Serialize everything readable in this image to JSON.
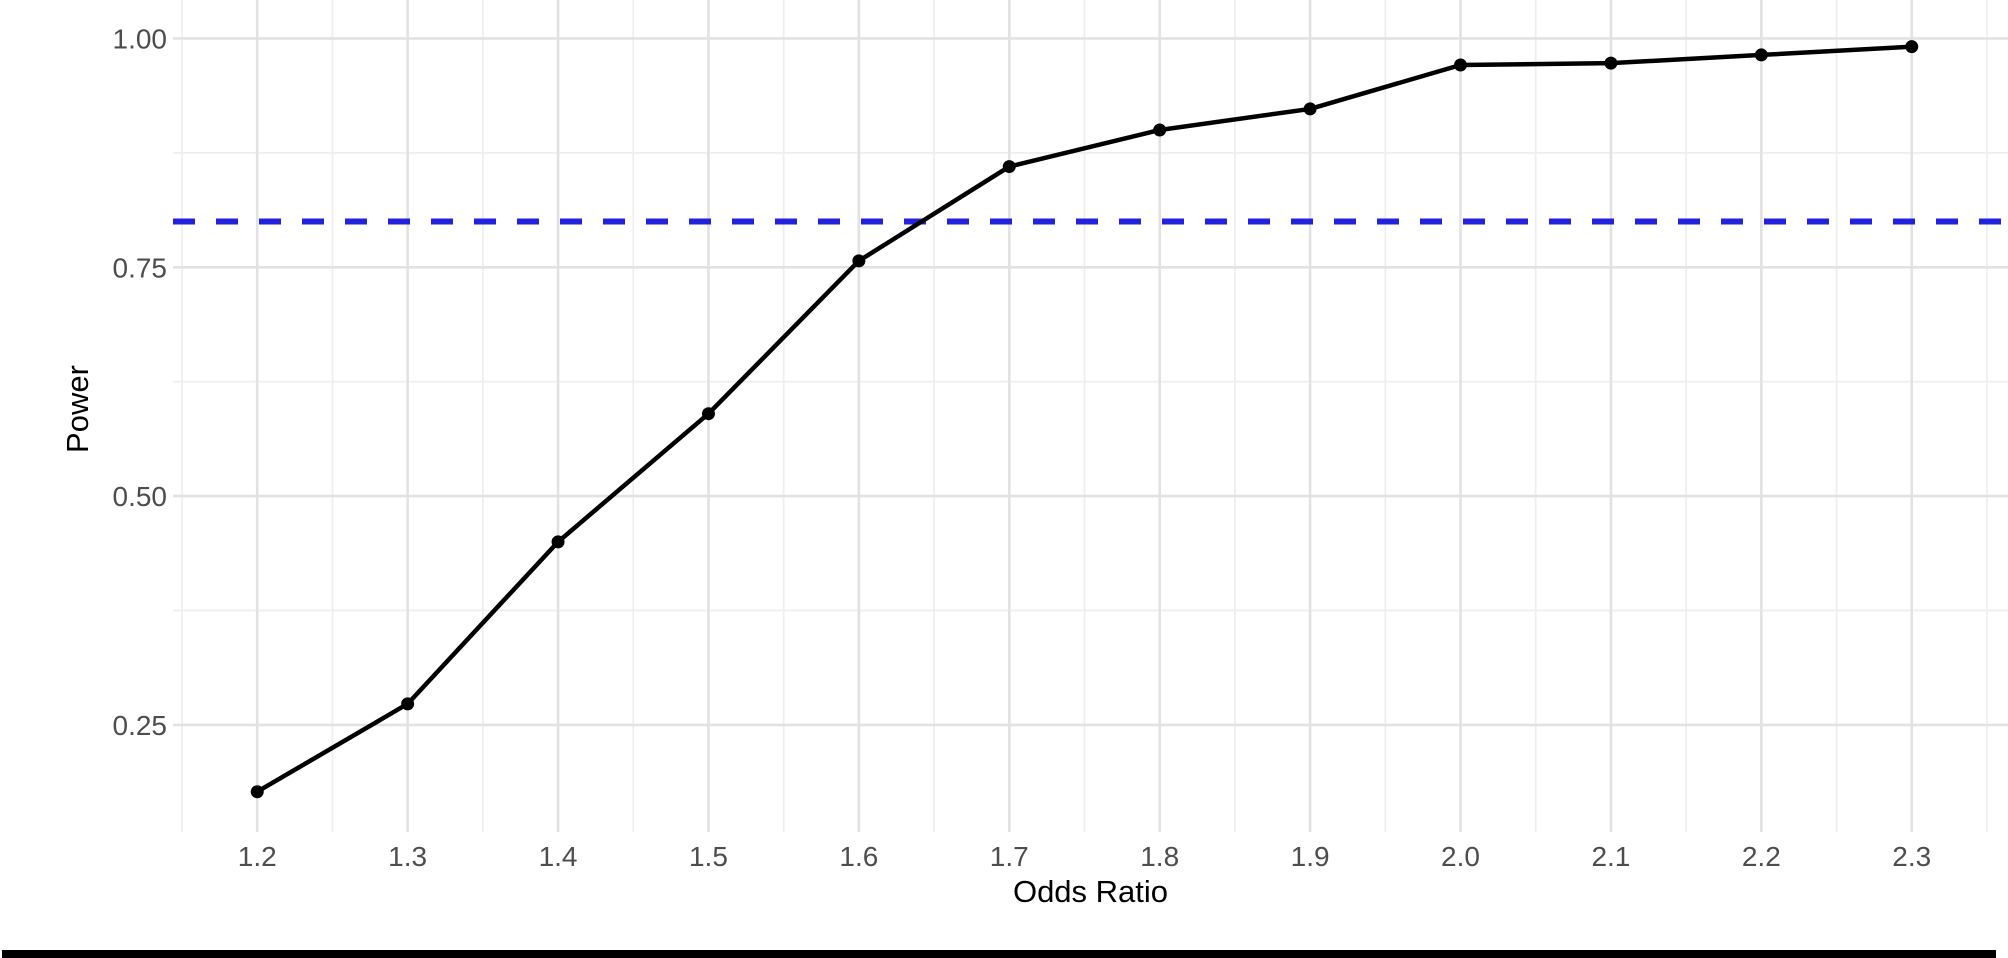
{
  "chart_data": {
    "type": "line",
    "title": "",
    "xlabel": "Odds Ratio",
    "ylabel": "Power",
    "x": [
      1.2,
      1.3,
      1.4,
      1.5,
      1.6,
      1.7,
      1.8,
      1.9,
      2.0,
      2.1,
      2.2,
      2.3
    ],
    "series": [
      {
        "name": "Power",
        "values": [
          0.177,
          0.273,
          0.45,
          0.59,
          0.757,
          0.86,
          0.9,
          0.923,
          0.971,
          0.973,
          0.982,
          0.991
        ]
      }
    ],
    "x_ticks": [
      "1.2",
      "1.3",
      "1.4",
      "1.5",
      "1.6",
      "1.7",
      "1.8",
      "1.9",
      "2.0",
      "2.1",
      "2.2",
      "2.3"
    ],
    "x_tick_values": [
      1.2,
      1.3,
      1.4,
      1.5,
      1.6,
      1.7,
      1.8,
      1.9,
      2.0,
      2.1,
      2.2,
      2.3
    ],
    "y_ticks": [
      "0.25",
      "0.50",
      "0.75",
      "1.00"
    ],
    "y_tick_values": [
      0.25,
      0.5,
      0.75,
      1.0
    ],
    "xlim": [
      1.144,
      2.364
    ],
    "ylim": [
      0.133,
      1.042
    ],
    "x_minor_step": 0.05,
    "y_minor_values": [
      0.125,
      0.375,
      0.625,
      0.875
    ],
    "reference_line": {
      "y": 0.8,
      "style": "dashed"
    },
    "grid": "on",
    "legend": "none",
    "marker": "point",
    "colors": {
      "line": "#000000",
      "point": "#000000",
      "reference": "#2222dd",
      "grid_major": "#e2e2e2",
      "grid_minor": "#eeeeee",
      "tick_label": "#4d4d4d",
      "axis_title": "#000000",
      "background": "#ffffff"
    }
  }
}
